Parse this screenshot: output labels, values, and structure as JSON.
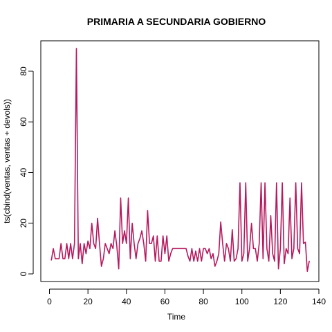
{
  "chart_data": {
    "type": "line",
    "title": "PRIMARIA A SECUNDARIA GOBIERNO",
    "xlabel": "Time",
    "ylabel": "ts(cbind(ventas, ventas + devols))",
    "xlim": [
      -4.5,
      140
    ],
    "ylim": [
      -3,
      92
    ],
    "x_ticks": [
      0,
      20,
      40,
      60,
      80,
      100,
      120,
      140
    ],
    "y_ticks": [
      0,
      20,
      40,
      60,
      80
    ],
    "grid": false,
    "series": [
      {
        "color": "#b5195e",
        "x_start": 1,
        "values": [
          5.5,
          10,
          6,
          6,
          6,
          12,
          6,
          6,
          12,
          6,
          12,
          6,
          12,
          89,
          6,
          12,
          4,
          12,
          8,
          13,
          10,
          20,
          12,
          10,
          22,
          12,
          3,
          6,
          12,
          10,
          8,
          12,
          10,
          17,
          11,
          2,
          30,
          12,
          17,
          12,
          30,
          6,
          20,
          12,
          6,
          12,
          14,
          17,
          12,
          5,
          25,
          12,
          12,
          15,
          5,
          15,
          5,
          5,
          15,
          8,
          15,
          5,
          8,
          10,
          10,
          10,
          10,
          10,
          10,
          10,
          10,
          7,
          5,
          10,
          5,
          9,
          5,
          10,
          5,
          10,
          10,
          8,
          10,
          6,
          8,
          3,
          5,
          8,
          20.5,
          12,
          5,
          12,
          10,
          5,
          17.5,
          5,
          6,
          10,
          36,
          5,
          8,
          36,
          5,
          10,
          20,
          10,
          10,
          5,
          12,
          36,
          6,
          36,
          10,
          5,
          23,
          8,
          5,
          36,
          2,
          10,
          36,
          4,
          10,
          8,
          30,
          6,
          10,
          36,
          10,
          8,
          36,
          12,
          12.5,
          1,
          5
        ]
      }
    ]
  }
}
